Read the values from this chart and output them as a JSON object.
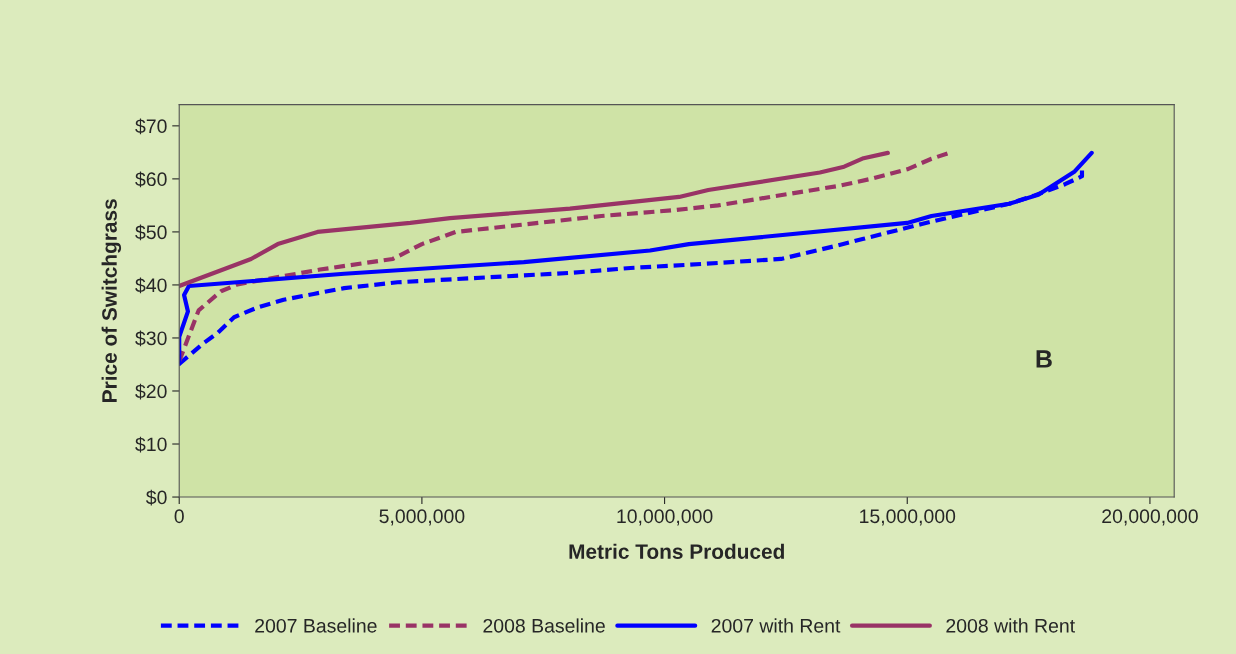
{
  "chart_data": {
    "type": "line",
    "xlabel": "Metric Tons Produced",
    "ylabel": "Price of Switchgrass",
    "annotations": [
      "B"
    ],
    "xlim": [
      0,
      20500000
    ],
    "ylim": [
      0,
      74
    ],
    "xticks": [
      {
        "value": 0,
        "label": "0"
      },
      {
        "value": 5000000,
        "label": "5,000,000"
      },
      {
        "value": 10000000,
        "label": "10,000,000"
      },
      {
        "value": 15000000,
        "label": "15,000,000"
      },
      {
        "value": 20000000,
        "label": "20,000,000"
      }
    ],
    "yticks": [
      {
        "value": 0,
        "label": "$0"
      },
      {
        "value": 10,
        "label": "$10"
      },
      {
        "value": 20,
        "label": "$20"
      },
      {
        "value": 30,
        "label": "$30"
      },
      {
        "value": 40,
        "label": "$40"
      },
      {
        "value": 50,
        "label": "$50"
      },
      {
        "value": 60,
        "label": "$60"
      },
      {
        "value": 70,
        "label": "$70"
      }
    ],
    "grid": false,
    "legend": "bottom",
    "marker": "none",
    "series": [
      {
        "name": "2007 Baseline",
        "color": "#0000ff",
        "line_style": "dashed",
        "x": [
          0,
          500000,
          800000,
          1130000,
          1600000,
          2150000,
          2770000,
          3400000,
          4500000,
          6300000,
          8100000,
          9300000,
          10500000,
          12400000,
          13500000,
          14100000,
          15300000,
          15900000,
          17100000,
          17600000,
          18250000,
          18600000,
          18600000
        ],
        "values": [
          25.1,
          29,
          31,
          33.9,
          35.7,
          37.2,
          38.3,
          39.4,
          40.5,
          41.4,
          42.3,
          43.2,
          43.8,
          44.9,
          47.3,
          48.7,
          51.5,
          52.8,
          55.3,
          56.8,
          59,
          60.5,
          61.6
        ]
      },
      {
        "name": "2008 Baseline",
        "color": "#993366",
        "line_style": "dashed",
        "x": [
          0,
          400000,
          860000,
          1200000,
          2900000,
          4400000,
          5000000,
          5700000,
          8700000,
          10200000,
          11100000,
          13600000,
          14300000,
          15000000,
          15500000,
          15900000
        ],
        "values": [
          25.6,
          35.2,
          38.8,
          40.1,
          42.9,
          44.9,
          47.7,
          50,
          53,
          54.1,
          55,
          58.7,
          60.1,
          61.8,
          63.8,
          65
        ]
      },
      {
        "name": "2007 with Rent",
        "color": "#0000ff",
        "line_style": "solid",
        "x": [
          0,
          0,
          180000,
          100000,
          200000,
          3400000,
          7100000,
          9700000,
          10500000,
          15000000,
          15500000,
          17100000,
          17700000,
          18450000,
          18800000
        ],
        "values": [
          25.1,
          30.2,
          35,
          38.1,
          39.8,
          42.1,
          44.3,
          46.5,
          47.7,
          51.7,
          53,
          55.3,
          57,
          61.4,
          64.9
        ]
      },
      {
        "name": "2008 with Rent",
        "color": "#993366",
        "line_style": "solid",
        "x": [
          0,
          1480000,
          2030000,
          2850000,
          4760000,
          5580000,
          8050000,
          10300000,
          10900000,
          13200000,
          13700000,
          14100000,
          14600000
        ],
        "values": [
          39.8,
          44.9,
          47.7,
          50,
          51.7,
          52.6,
          54.4,
          56.6,
          57.9,
          61.2,
          62.3,
          63.9,
          64.9
        ]
      }
    ]
  }
}
